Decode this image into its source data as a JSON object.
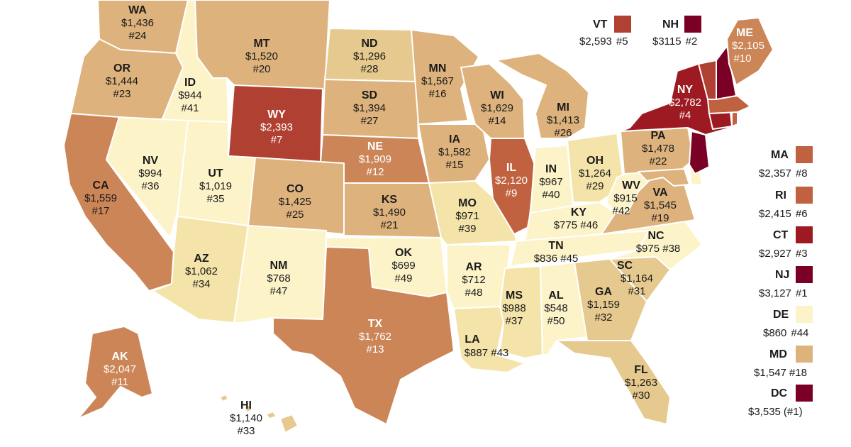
{
  "colors": {
    "c1": "#fcf3c9",
    "c2": "#f4e4a9",
    "c3": "#e6c98e",
    "c4": "#ddb27c",
    "c5": "#cc8557",
    "c6": "#c0613f",
    "c7": "#b04032",
    "c8": "#9d1a22",
    "c9": "#7b0025"
  },
  "states": {
    "WA": {
      "abbr": "WA",
      "value": "$1,436",
      "rank": "#24"
    },
    "OR": {
      "abbr": "OR",
      "value": "$1,444",
      "rank": "#23"
    },
    "CA": {
      "abbr": "CA",
      "value": "$1,559",
      "rank": "#17"
    },
    "ID": {
      "abbr": "ID",
      "value": "$944",
      "rank": "#41"
    },
    "NV": {
      "abbr": "NV",
      "value": "$994",
      "rank": "#36"
    },
    "MT": {
      "abbr": "MT",
      "value": "$1,520",
      "rank": "#20"
    },
    "WY": {
      "abbr": "WY",
      "value": "$2,393",
      "rank": "#7"
    },
    "UT": {
      "abbr": "UT",
      "value": "$1,019",
      "rank": "#35"
    },
    "AZ": {
      "abbr": "AZ",
      "value": "$1,062",
      "rank": "#34"
    },
    "CO": {
      "abbr": "CO",
      "value": "$1,425",
      "rank": "#25"
    },
    "NM": {
      "abbr": "NM",
      "value": "$768",
      "rank": "#47"
    },
    "ND": {
      "abbr": "ND",
      "value": "$1,296",
      "rank": "#28"
    },
    "SD": {
      "abbr": "SD",
      "value": "$1,394",
      "rank": "#27"
    },
    "NE": {
      "abbr": "NE",
      "value": "$1,909",
      "rank": "#12"
    },
    "KS": {
      "abbr": "KS",
      "value": "$1,490",
      "rank": "#21"
    },
    "OK": {
      "abbr": "OK",
      "value": "$699",
      "rank": "#49"
    },
    "TX": {
      "abbr": "TX",
      "value": "$1,762",
      "rank": "#13"
    },
    "MN": {
      "abbr": "MN",
      "value": "$1,567",
      "rank": "#16"
    },
    "IA": {
      "abbr": "IA",
      "value": "$1,582",
      "rank": "#15"
    },
    "MO": {
      "abbr": "MO",
      "value": "$971",
      "rank": "#39"
    },
    "AR": {
      "abbr": "AR",
      "value": "$712",
      "rank": "#48"
    },
    "LA": {
      "abbr": "LA",
      "value": "$887 #43"
    },
    "WI": {
      "abbr": "WI",
      "value": "$1,629",
      "rank": "#14"
    },
    "IL": {
      "abbr": "IL",
      "value": "$2,120",
      "rank": "#9"
    },
    "MI": {
      "abbr": "MI",
      "value": "$1,413",
      "rank": "#26"
    },
    "IN": {
      "abbr": "IN",
      "value": "$967",
      "rank": "#40"
    },
    "OH": {
      "abbr": "OH",
      "value": "$1,264",
      "rank": "#29"
    },
    "KY": {
      "abbr": "KY",
      "value": "$775 #46"
    },
    "TN": {
      "abbr": "TN",
      "value": "$836 #45"
    },
    "MS": {
      "abbr": "MS",
      "value": "$988",
      "rank": "#37"
    },
    "AL": {
      "abbr": "AL",
      "value": "$548",
      "rank": "#50"
    },
    "GA": {
      "abbr": "GA",
      "value": "$1,159",
      "rank": "#32"
    },
    "FL": {
      "abbr": "FL",
      "value": "$1,263",
      "rank": "#30"
    },
    "SC": {
      "abbr": "SC",
      "value": "$1,164",
      "rank": "#31"
    },
    "NC": {
      "abbr": "NC",
      "value": "$975 #38"
    },
    "VA": {
      "abbr": "VA",
      "value": "$1,545",
      "rank": "#19"
    },
    "WV": {
      "abbr": "WV",
      "value": "$915",
      "rank": "#42"
    },
    "PA": {
      "abbr": "PA",
      "value": "$1,478",
      "rank": "#22"
    },
    "NY": {
      "abbr": "NY",
      "value": "$2,782",
      "rank": "#4"
    },
    "ME": {
      "abbr": "ME",
      "value": "$2,105",
      "rank": "#10"
    },
    "AK": {
      "abbr": "AK",
      "value": "$2,047",
      "rank": "#11"
    },
    "HI": {
      "abbr": "HI",
      "value": "$1,140",
      "rank": "#33"
    }
  },
  "keys": {
    "VT": {
      "abbr": "VT",
      "value": "$2,593",
      "rank": "#5"
    },
    "NH": {
      "abbr": "NH",
      "value": "$3115",
      "rank": "#2"
    },
    "MA": {
      "abbr": "MA",
      "value": "$2,357",
      "rank": "#8"
    },
    "RI": {
      "abbr": "RI",
      "value": "$2,415",
      "rank": "#6"
    },
    "CT": {
      "abbr": "CT",
      "value": "$2,927",
      "rank": "#3"
    },
    "NJ": {
      "abbr": "NJ",
      "value": "$3,127",
      "rank": "#1"
    },
    "DE": {
      "abbr": "DE",
      "value": "$860",
      "rank": "#44"
    },
    "MD": {
      "abbr": "MD",
      "value": "$1,547",
      "rank": "#18"
    },
    "DC": {
      "abbr": "DC",
      "value": "$3,535",
      "rank": "(#1)"
    }
  }
}
